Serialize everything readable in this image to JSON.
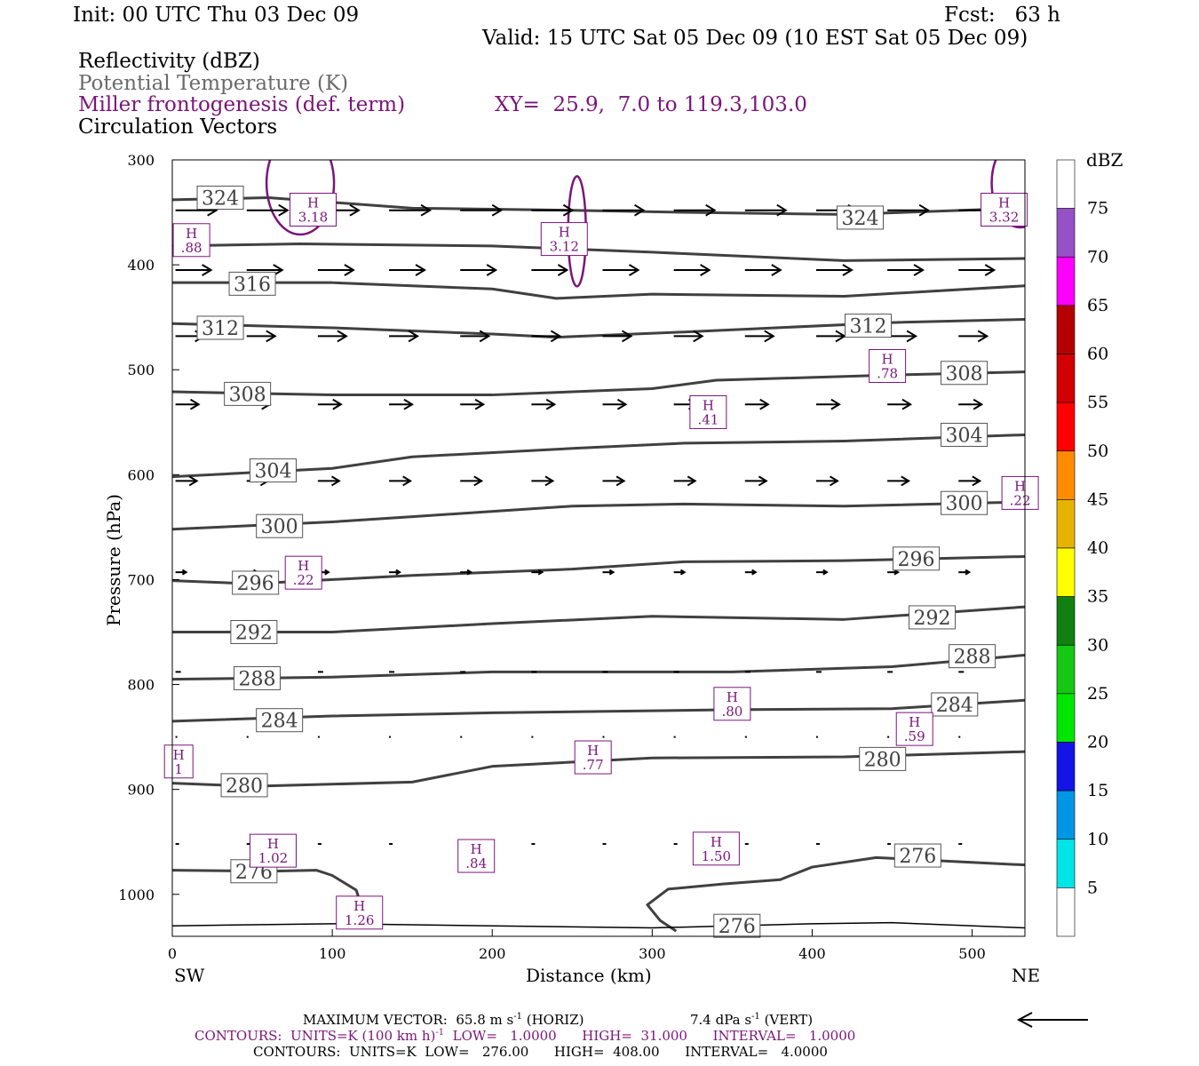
{
  "header": {
    "init": "Init: 00 UTC Thu 03 Dec 09",
    "fcst": "Fcst:   63 h",
    "valid": "Valid: 15 UTC Sat 05 Dec 09 (10 EST Sat 05 Dec 09)",
    "fields": [
      "Reflectivity (dBZ)",
      "Potential Temperature (K)",
      "Miller frontogenesis (def. term)",
      "Circulation Vectors"
    ],
    "xy": "XY=  25.9,  7.0 to 119.3,103.0"
  },
  "footer": {
    "max_vector": "MAXIMUM VECTOR:  65.8 m s",
    "max_vector_exp": "-1",
    "max_vector_horiz": " (HORIZ)",
    "max_vector_vert": "7.4 dPa s",
    "max_vector_vert_exp": "-1",
    "max_vector_vert_tail": " (VERT)",
    "contours1_a": "CONTOURS:  UNITS=K (100 km h)",
    "contours1_exp": "-1",
    "contours1_b": "  LOW=   1.0000      HIGH=  31.000      INTERVAL=   1.0000",
    "contours2": "CONTOURS:  UNITS=K  LOW=   276.00      HIGH=  408.00      INTERVAL=   4.0000"
  },
  "colors": {
    "theta": "#404040",
    "frontogenesis": "#7b147b",
    "vectors": "#000000"
  },
  "chart_data": {
    "type": "cross-section",
    "xlabel": "Distance (km)",
    "ylabel": "Pressure (hPa)",
    "xlim": [
      0,
      533
    ],
    "ylim": [
      1040,
      300
    ],
    "x_ticks": [
      0,
      100,
      200,
      300,
      400,
      500
    ],
    "y_ticks": [
      300,
      400,
      500,
      600,
      700,
      800,
      900,
      1000
    ],
    "x_end_labels": {
      "left": "SW",
      "right": "NE"
    },
    "colorbar": {
      "title": "dBZ",
      "levels": [
        5,
        10,
        15,
        20,
        25,
        30,
        35,
        40,
        45,
        50,
        55,
        60,
        65,
        70,
        75
      ],
      "colors": [
        "#ffffff",
        "#00e5e5",
        "#0096e6",
        "#1414e6",
        "#00e600",
        "#14c814",
        "#108010",
        "#ffff00",
        "#e6b400",
        "#ff8c00",
        "#ff0000",
        "#d20000",
        "#b40000",
        "#ff00ff",
        "#9650c8",
        "#ffffff"
      ]
    },
    "theta_contours": [
      {
        "value": 324,
        "label": "324",
        "points": [
          [
            0,
            338
          ],
          [
            60,
            336
          ],
          [
            150,
            346
          ],
          [
            250,
            348
          ],
          [
            320,
            350
          ],
          [
            420,
            352
          ],
          [
            533,
            346
          ]
        ],
        "labels_at": [
          [
            30,
            336
          ],
          [
            430,
            355
          ]
        ]
      },
      {
        "value": 320,
        "label": "",
        "points": [
          [
            0,
            382
          ],
          [
            80,
            380
          ],
          [
            200,
            382
          ],
          [
            300,
            388
          ],
          [
            420,
            396
          ],
          [
            533,
            394
          ]
        ],
        "labels_at": []
      },
      {
        "value": 316,
        "label": "316",
        "points": [
          [
            0,
            417
          ],
          [
            100,
            417
          ],
          [
            200,
            423
          ],
          [
            240,
            432
          ],
          [
            300,
            428
          ],
          [
            420,
            430
          ],
          [
            533,
            420
          ]
        ],
        "labels_at": [
          [
            50,
            418
          ]
        ]
      },
      {
        "value": 312,
        "label": "312",
        "points": [
          [
            0,
            456
          ],
          [
            100,
            460
          ],
          [
            200,
            466
          ],
          [
            240,
            469
          ],
          [
            320,
            464
          ],
          [
            450,
            455
          ],
          [
            533,
            452
          ]
        ],
        "labels_at": [
          [
            30,
            460
          ],
          [
            435,
            458
          ]
        ]
      },
      {
        "value": 308,
        "label": "308",
        "points": [
          [
            0,
            521
          ],
          [
            100,
            524
          ],
          [
            200,
            524
          ],
          [
            300,
            518
          ],
          [
            340,
            510
          ],
          [
            450,
            505
          ],
          [
            533,
            502
          ]
        ],
        "labels_at": [
          [
            47,
            523
          ],
          [
            495,
            503
          ]
        ]
      },
      {
        "value": 304,
        "label": "304",
        "points": [
          [
            0,
            602
          ],
          [
            100,
            594
          ],
          [
            150,
            583
          ],
          [
            250,
            575
          ],
          [
            320,
            570
          ],
          [
            420,
            568
          ],
          [
            533,
            562
          ]
        ],
        "labels_at": [
          [
            63,
            596
          ],
          [
            495,
            562
          ]
        ]
      },
      {
        "value": 300,
        "label": "300",
        "points": [
          [
            0,
            652
          ],
          [
            100,
            645
          ],
          [
            150,
            640
          ],
          [
            250,
            630
          ],
          [
            320,
            628
          ],
          [
            420,
            630
          ],
          [
            533,
            626
          ]
        ],
        "labels_at": [
          [
            67,
            649
          ],
          [
            495,
            627
          ]
        ]
      },
      {
        "value": 296,
        "label": "296",
        "points": [
          [
            0,
            701
          ],
          [
            50,
            704
          ],
          [
            150,
            696
          ],
          [
            250,
            690
          ],
          [
            320,
            683
          ],
          [
            420,
            682
          ],
          [
            533,
            678
          ]
        ],
        "labels_at": [
          [
            52,
            703
          ],
          [
            465,
            680
          ]
        ]
      },
      {
        "value": 292,
        "label": "292",
        "points": [
          [
            0,
            750
          ],
          [
            100,
            750
          ],
          [
            200,
            742
          ],
          [
            300,
            735
          ],
          [
            420,
            738
          ],
          [
            533,
            726
          ]
        ],
        "labels_at": [
          [
            51,
            750
          ],
          [
            475,
            736
          ]
        ]
      },
      {
        "value": 288,
        "label": "288",
        "points": [
          [
            0,
            795
          ],
          [
            100,
            793
          ],
          [
            200,
            788
          ],
          [
            350,
            788
          ],
          [
            450,
            783
          ],
          [
            533,
            772
          ]
        ],
        "labels_at": [
          [
            53,
            794
          ],
          [
            500,
            773
          ]
        ]
      },
      {
        "value": 284,
        "label": "284",
        "points": [
          [
            0,
            835
          ],
          [
            100,
            830
          ],
          [
            200,
            827
          ],
          [
            350,
            824
          ],
          [
            450,
            823
          ],
          [
            533,
            815
          ]
        ],
        "labels_at": [
          [
            67,
            834
          ],
          [
            489,
            819
          ]
        ]
      },
      {
        "value": 280,
        "label": "280",
        "points": [
          [
            0,
            894
          ],
          [
            50,
            897
          ],
          [
            150,
            893
          ],
          [
            200,
            878
          ],
          [
            300,
            870
          ],
          [
            420,
            869
          ],
          [
            533,
            864
          ]
        ],
        "labels_at": [
          [
            45,
            896
          ],
          [
            444,
            871
          ]
        ]
      },
      {
        "value": 276,
        "label": "276",
        "points": [
          [
            0,
            977
          ],
          [
            60,
            978
          ],
          [
            90,
            977
          ],
          [
            100,
            982
          ],
          [
            115,
            996
          ],
          [
            118,
            1010
          ]
        ],
        "labels_at": [
          [
            51,
            978
          ],
          [
            466,
            963
          ]
        ]
      },
      {
        "value": 276,
        "label": "",
        "points": [
          [
            315,
            1035
          ],
          [
            305,
            1025
          ],
          [
            297,
            1010
          ],
          [
            310,
            995
          ],
          [
            345,
            990
          ],
          [
            380,
            986
          ],
          [
            400,
            974
          ],
          [
            440,
            965
          ],
          [
            480,
            968
          ],
          [
            533,
            972
          ]
        ],
        "labels_at": [
          [
            353,
            1030
          ]
        ]
      }
    ],
    "surface_line": [
      [
        0,
        1030
      ],
      [
        100,
        1028
      ],
      [
        200,
        1030
      ],
      [
        300,
        1032
      ],
      [
        350,
        1030
      ],
      [
        400,
        1028
      ],
      [
        450,
        1027
      ],
      [
        533,
        1032
      ]
    ],
    "frontogenesis_maxima": [
      {
        "label": "H",
        "value": ".88",
        "x": 12,
        "p": 376
      },
      {
        "label": "H",
        "value": "3.18",
        "x": 88,
        "p": 347
      },
      {
        "label": "H",
        "value": "3.12",
        "x": 245,
        "p": 375
      },
      {
        "label": "H",
        "value": "3.32",
        "x": 520,
        "p": 347
      },
      {
        "label": "H",
        "value": ".78",
        "x": 447,
        "p": 496
      },
      {
        "label": "H",
        "value": ".41",
        "x": 335,
        "p": 540
      },
      {
        "label": "H",
        "value": ".22",
        "x": 530,
        "p": 617
      },
      {
        "label": "H",
        "value": ".22",
        "x": 82,
        "p": 693
      },
      {
        "label": "H",
        "value": ".80",
        "x": 350,
        "p": 818
      },
      {
        "label": "H",
        "value": ".59",
        "x": 464,
        "p": 842
      },
      {
        "label": "H",
        "value": "1",
        "x": 4,
        "p": 873
      },
      {
        "label": "H",
        "value": ".77",
        "x": 263,
        "p": 869
      },
      {
        "label": "H",
        "value": ".84",
        "x": 190,
        "p": 963
      },
      {
        "label": "H",
        "value": "1.02",
        "x": 63,
        "p": 958
      },
      {
        "label": "H",
        "value": "1.50",
        "x": 340,
        "p": 956
      },
      {
        "label": "H",
        "value": "1.26",
        "x": 117,
        "p": 1017
      }
    ],
    "arrow_rows": [
      {
        "p": 348,
        "dx": 23,
        "dp": 0
      },
      {
        "p": 405,
        "dx": 20,
        "dp": 0
      },
      {
        "p": 468,
        "dx": 16,
        "dp": 0
      },
      {
        "p": 533,
        "dx": 13,
        "dp": 0
      },
      {
        "p": 606,
        "dx": 12,
        "dp": 0
      },
      {
        "p": 693,
        "dx": 6,
        "dp": 0
      },
      {
        "p": 788,
        "dx": 3,
        "dp": 0
      },
      {
        "p": 850,
        "dx": 1,
        "dp": 0
      },
      {
        "p": 952,
        "dx": 2,
        "dp": 0
      }
    ]
  }
}
